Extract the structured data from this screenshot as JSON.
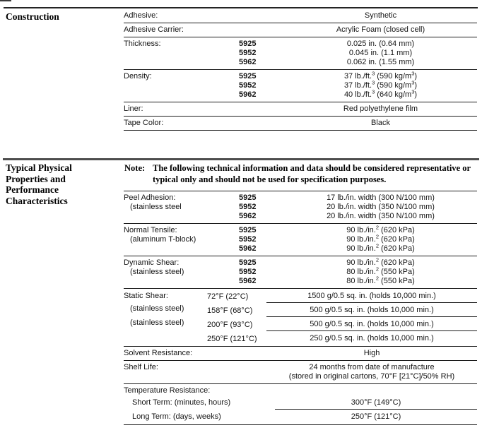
{
  "construction": {
    "heading": "Construction",
    "rows": [
      {
        "label": "Adhesive:",
        "value": "Synthetic"
      },
      {
        "label": "Adhesive Carrier:",
        "value": "Acrylic Foam (closed cell)"
      },
      {
        "label": "Thickness:",
        "codes": [
          "5925",
          "5952",
          "5962"
        ],
        "values": [
          "0.025 in. (0.64 mm)",
          "0.045 in. (1.1 mm)",
          "0.062 in. (1.55 mm)"
        ]
      },
      {
        "label": "Density:",
        "codes": [
          "5925",
          "5952",
          "5962"
        ],
        "values": [
          "37 lb./ft.^3^ (590 kg/m^3^)",
          "37 lb./ft.^3^ (590 kg/m^3^)",
          "40 lb./ft.^3^ (640 kg/m^3^)"
        ]
      },
      {
        "label": "Liner:",
        "value": "Red polyethylene film"
      },
      {
        "label": "Tape Color:",
        "value": "Black"
      }
    ]
  },
  "properties": {
    "heading_lines": [
      "Typical Physical",
      "Properties and",
      "Performance",
      "Characteristics"
    ],
    "note": {
      "label": "Note:",
      "line1": "The following technical information and data should be considered representative",
      "line2": "or typical only and should not be used for specification purposes."
    },
    "peel_adhesion": {
      "label": "Peel Adhesion:",
      "sublabel": "(stainless steel",
      "codes": [
        "5925",
        "5952",
        "5962"
      ],
      "values": [
        "17 lb./in. width (300 N/100 mm)",
        "20 lb./in. width (350 N/100 mm)",
        "20 lb./in. width (350 N/100 mm)"
      ]
    },
    "normal_tensile": {
      "label": "Normal Tensile:",
      "sublabel": "(aluminum T-block)",
      "codes": [
        "5925",
        "5952",
        "5962"
      ],
      "values": [
        "90 lb./in.^2^ (620 kPa)",
        "90 lb./in.^2^ (620 kPa)",
        "90 lb./in.^2^ (620 kPa)"
      ]
    },
    "dynamic_shear": {
      "label": "Dynamic Shear:",
      "sublabel": "(stainless steel)",
      "codes": [
        "5925",
        "5952",
        "5962"
      ],
      "values": [
        "90 lb./in.^2^ (620 kPa)",
        "80 lb./in.^2^ (550 kPa)",
        "80 lb./in.^2^ (550 kPa)"
      ]
    },
    "static_shear": {
      "label": "Static Shear:",
      "sublabels": [
        "(stainless steel)",
        "(stainless steel)"
      ],
      "rows": [
        {
          "temp": "72°F (22°C)",
          "value": "1500 g/0.5 sq. in. (holds 10,000 min.)"
        },
        {
          "temp": "158°F (68°C)",
          "value": "500 g/0.5 sq. in. (holds 10,000 min.)"
        },
        {
          "temp": "200°F (93°C)",
          "value": "500 g/0.5 sq. in. (holds 10,000 min.)"
        },
        {
          "temp": "250°F (121°C)",
          "value": "250 g/0.5 sq. in. (holds 10,000 min.)"
        }
      ]
    },
    "solvent_resistance": {
      "label": "Solvent Resistance:",
      "value": "High"
    },
    "shelf_life": {
      "label": "Shelf Life:",
      "value_line1": "24 months from date of manufacture",
      "value_line2": "(stored in original cartons, 70°F [21°C]/50% RH)"
    },
    "temperature_resistance": {
      "label": "Temperature Resistance:",
      "rows": [
        {
          "label": "Short Term: (minutes, hours)",
          "value": "300°F (149°C)"
        },
        {
          "label": "Long Term: (days, weeks)",
          "value": "250°F (121°C)"
        }
      ]
    }
  }
}
